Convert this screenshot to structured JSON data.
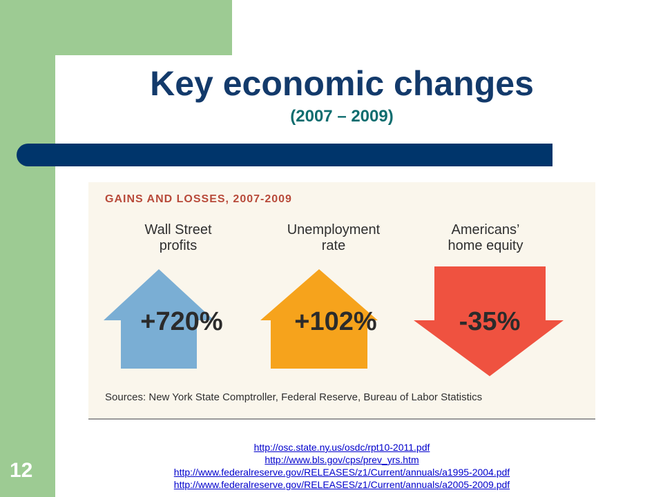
{
  "slide": {
    "title": "Key economic changes",
    "subtitle": "(2007 – 2009)",
    "number": "12"
  },
  "infographic": {
    "header": "GAINS AND LOSSES, 2007-2009",
    "items": [
      {
        "label_line1": "Wall Street",
        "label_line2": "profits",
        "value": "+720%",
        "direction": "up",
        "color": "#7aaed4"
      },
      {
        "label_line1": "Unemployment",
        "label_line2": "rate",
        "value": "+102%",
        "direction": "up",
        "color": "#f6a31c"
      },
      {
        "label_line1": "Americans’",
        "label_line2": "home equity",
        "value": "-35%",
        "direction": "down",
        "color": "#ef5240"
      }
    ],
    "sources": "Sources: New York State Comptroller, Federal Reserve, Bureau of Labor Statistics"
  },
  "links": [
    "http://osc.state.ny.us/osdc/rpt10-2011.pdf",
    "http://www.bls.gov/cps/prev_yrs.htm",
    "http://www.federalreserve.gov/RELEASES/z1/Current/annuals/a1995-2004.pdf",
    "http://www.federalreserve.gov/RELEASES/z1/Current/annuals/a2005-2009.pdf"
  ],
  "colors": {
    "frame_green": "#9dcb93",
    "title_navy": "#133a6b",
    "subtitle_teal": "#0f6d6f",
    "bar_navy": "#00356b"
  }
}
